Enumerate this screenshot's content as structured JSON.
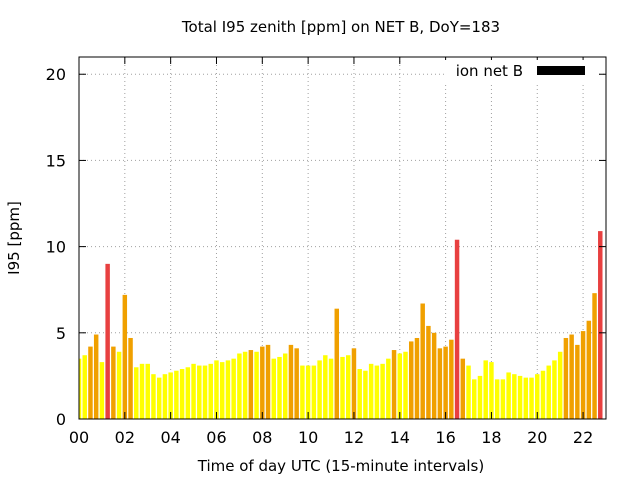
{
  "chart_data": {
    "type": "bar",
    "title": "Total I95 zenith [ppm] on NET B, DoY=183",
    "xlabel": "Time of day UTC (15-minute intervals)",
    "ylabel": "I95 [ppm]",
    "xlim": [
      0,
      23
    ],
    "ylim": [
      0,
      21
    ],
    "xticks": [
      "00",
      "02",
      "04",
      "06",
      "08",
      "10",
      "12",
      "14",
      "16",
      "18",
      "20",
      "22"
    ],
    "xtick_values": [
      0,
      2,
      4,
      6,
      8,
      10,
      12,
      14,
      16,
      18,
      20,
      22
    ],
    "yticks": [
      0,
      5,
      10,
      15,
      20
    ],
    "grid": true,
    "legend": {
      "label": "ion net B",
      "color": "#000000",
      "position": "top-right"
    },
    "colors": {
      "low": "#ffff00",
      "medium": "#f0a000",
      "high": "#e84040"
    },
    "interval_hours": 0.25,
    "series": [
      {
        "values": [
          3.5,
          3.7,
          4.2,
          4.9,
          3.3,
          9.0,
          4.2,
          3.9,
          7.2,
          4.7,
          3.0,
          3.2,
          3.2,
          2.6,
          2.4,
          2.6,
          2.7,
          2.8,
          2.9,
          3.0,
          3.2,
          3.1,
          3.1,
          3.2,
          3.4,
          3.3,
          3.4,
          3.5,
          3.8,
          3.9,
          4.0,
          3.9,
          4.2,
          4.3,
          3.5,
          3.6,
          3.8,
          4.3,
          4.1,
          3.1,
          3.1,
          3.1,
          3.4,
          3.7,
          3.5,
          6.4,
          3.6,
          3.7,
          4.1,
          2.9,
          2.8,
          3.2,
          3.1,
          3.2,
          3.5,
          4.0,
          3.8,
          3.9,
          4.5,
          4.7,
          6.7,
          5.4,
          5.0,
          4.1,
          4.2,
          4.6,
          10.4,
          3.5,
          3.1,
          2.3,
          2.5,
          3.4,
          3.3,
          2.3,
          2.3,
          2.7,
          2.6,
          2.5,
          2.4,
          2.4,
          2.6,
          2.8,
          3.1,
          3.4,
          3.9,
          4.7,
          4.9,
          4.3,
          5.1,
          5.7,
          7.3,
          10.9
        ],
        "levels": [
          "low",
          "low",
          "medium",
          "medium",
          "low",
          "high",
          "medium",
          "low",
          "medium",
          "medium",
          "low",
          "low",
          "low",
          "low",
          "low",
          "low",
          "low",
          "low",
          "low",
          "low",
          "low",
          "low",
          "low",
          "low",
          "low",
          "low",
          "low",
          "low",
          "low",
          "low",
          "medium",
          "low",
          "medium",
          "medium",
          "low",
          "low",
          "low",
          "medium",
          "medium",
          "low",
          "low",
          "low",
          "low",
          "low",
          "low",
          "medium",
          "low",
          "low",
          "medium",
          "low",
          "low",
          "low",
          "low",
          "low",
          "low",
          "medium",
          "low",
          "low",
          "medium",
          "medium",
          "medium",
          "medium",
          "medium",
          "medium",
          "medium",
          "medium",
          "high",
          "medium",
          "low",
          "low",
          "low",
          "low",
          "low",
          "low",
          "low",
          "low",
          "low",
          "low",
          "low",
          "low",
          "low",
          "low",
          "low",
          "low",
          "low",
          "medium",
          "medium",
          "medium",
          "medium",
          "medium",
          "medium",
          "high"
        ]
      }
    ]
  }
}
